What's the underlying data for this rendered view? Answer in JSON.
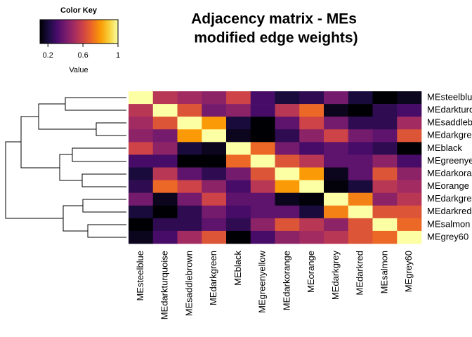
{
  "chart_data": {
    "type": "heatmap",
    "title_lines": [
      "Adjacency matrix - MEs",
      " modified edge weights)"
    ],
    "colormap": "inferno",
    "rows": [
      "MEsteelblue",
      "MEdarkturquoise",
      "MEsaddlebrown",
      "MEdarkgreen",
      "MEblack",
      "MEgreenyellow",
      "MEdarkorange",
      "MEorange",
      "MEdarkgrey",
      "MEdarkred",
      "MEsalmon",
      "MEgrey60"
    ],
    "columns": [
      "MEsteelblue",
      "MEdarkturquoise",
      "MEsaddlebrown",
      "MEdarkgreen",
      "MEblack",
      "MEgreenyellow",
      "MEdarkorange",
      "MEorange",
      "MEdarkgrey",
      "MEdarkred",
      "MEsalmon",
      "MEgrey60"
    ],
    "matrix": [
      [
        1,
        0.55,
        0.5,
        0.45,
        0.6,
        0.3,
        0.2,
        0.25,
        0.4,
        0.2,
        0.1,
        0.15
      ],
      [
        0.55,
        1,
        0.65,
        0.4,
        0.45,
        0.3,
        0.55,
        0.7,
        0.15,
        0.1,
        0.25,
        0.3
      ],
      [
        0.5,
        0.65,
        1,
        0.8,
        0.2,
        0.1,
        0.35,
        0.6,
        0.4,
        0.25,
        0.25,
        0.5
      ],
      [
        0.45,
        0.4,
        0.8,
        1,
        0.15,
        0.1,
        0.25,
        0.45,
        0.6,
        0.4,
        0.35,
        0.65
      ],
      [
        0.6,
        0.45,
        0.2,
        0.15,
        1,
        0.7,
        0.4,
        0.3,
        0.35,
        0.3,
        0.25,
        0.1
      ],
      [
        0.3,
        0.3,
        0.1,
        0.1,
        0.7,
        1,
        0.65,
        0.55,
        0.35,
        0.35,
        0.45,
        0.3
      ],
      [
        0.2,
        0.55,
        0.35,
        0.25,
        0.4,
        0.65,
        1,
        0.8,
        0.15,
        0.35,
        0.65,
        0.45
      ],
      [
        0.25,
        0.7,
        0.6,
        0.45,
        0.3,
        0.55,
        0.8,
        1,
        0.12,
        0.2,
        0.55,
        0.5
      ],
      [
        0.4,
        0.15,
        0.4,
        0.6,
        0.35,
        0.35,
        0.15,
        0.12,
        1,
        0.75,
        0.45,
        0.55
      ],
      [
        0.2,
        0.1,
        0.25,
        0.4,
        0.3,
        0.35,
        0.35,
        0.2,
        0.75,
        1,
        0.65,
        0.65
      ],
      [
        0.1,
        0.25,
        0.25,
        0.35,
        0.25,
        0.45,
        0.65,
        0.55,
        0.45,
        0.65,
        1,
        0.7
      ],
      [
        0.15,
        0.3,
        0.5,
        0.65,
        0.1,
        0.3,
        0.45,
        0.5,
        0.55,
        0.65,
        0.7,
        1
      ]
    ],
    "color_key": {
      "title": "Color Key",
      "xlabel": "Value",
      "xlim": [
        0.11,
        1
      ],
      "xticks": [
        0.2,
        0.6,
        1
      ]
    }
  }
}
